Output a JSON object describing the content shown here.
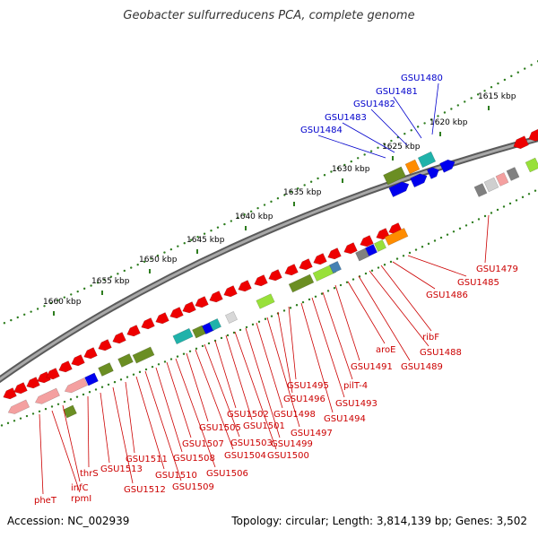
{
  "title": "Geobacter sulfurreducens PCA, complete genome",
  "footer": {
    "accession": "Accession: NC_002939",
    "summary": "Topology: circular; Length: 3,814,139 bp; Genes: 3,502"
  },
  "colors": {
    "background": "#ffffff",
    "backbone": "#7f7f7f",
    "tick_dots": "#2e7d1f",
    "plus_strand_label": "#0000cc",
    "minus_strand_label": "#cc0000",
    "gene_red": "#ee0000",
    "gene_pink": "#f4a0a0",
    "gene_olive": "#6b8e23",
    "gene_lightgreen": "#98e03a",
    "gene_orange": "#ff8c00",
    "gene_teal": "#20b2aa",
    "gene_blue": "#0000ee",
    "gene_gray": "#808080",
    "gene_steelblue": "#4682b4"
  },
  "scale_labels": [
    "1615 kbp",
    "1620 kbp",
    "1625 kbp",
    "1630 kbp",
    "1635 kbp",
    "1640 kbp",
    "1645 kbp",
    "1650 kbp",
    "1655 kbp",
    "1660 kbp"
  ],
  "plus_strand_genes": [
    "GSU1480",
    "GSU1481",
    "GSU1482",
    "GSU1483",
    "GSU1484"
  ],
  "minus_strand_genes": [
    "GSU1479",
    "GSU1485",
    "GSU1486",
    "ribF",
    "GSU1488",
    "GSU1489",
    "aroE",
    "GSU1491",
    "pilT-4",
    "GSU1493",
    "GSU1494",
    "GSU1495",
    "GSU1496",
    "GSU1497",
    "GSU1498",
    "GSU1499",
    "GSU1500",
    "GSU1501",
    "GSU1502",
    "GSU1503",
    "GSU1504",
    "GSU1505",
    "GSU1506",
    "GSU1507",
    "GSU1508",
    "GSU1509",
    "GSU1510",
    "GSU1511",
    "GSU1512",
    "GSU1513",
    "thrS",
    "infC",
    "rpmI",
    "pheT"
  ]
}
